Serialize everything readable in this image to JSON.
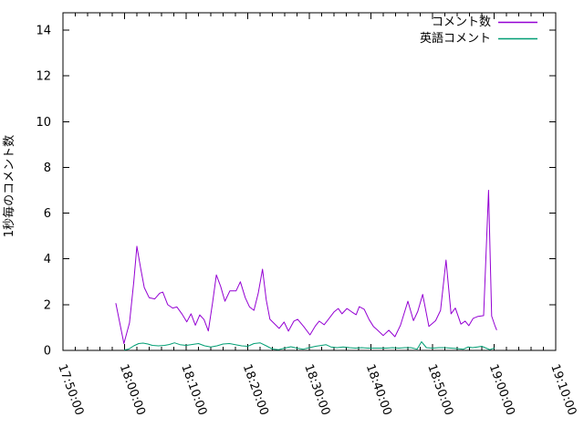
{
  "chart_data": {
    "type": "line",
    "title": "",
    "xlabel": "",
    "ylabel": "1秒毎のコメント数",
    "x_range": [
      "17:50:00",
      "19:10:00"
    ],
    "ylim": [
      0,
      14.76
    ],
    "yticks": [
      0,
      2,
      4,
      6,
      8,
      10,
      12,
      14
    ],
    "xticks_major": [
      "17:50:00",
      "18:00:00",
      "18:10:00",
      "18:20:00",
      "18:30:00",
      "18:40:00",
      "18:50:00",
      "19:00:00",
      "19:10:00"
    ],
    "xtick_minor_interval_min": 2,
    "grid": false,
    "legend_position": "top-right-inside",
    "legend": [
      "コメント数",
      "英語コメント"
    ],
    "colors": {
      "axis": "#000000",
      "background": "#ffffff",
      "series1": "#9400d3",
      "series2": "#009e73"
    },
    "series": [
      {
        "name": "コメント数",
        "color": "#9400d3",
        "points": [
          [
            "17:58:36",
            2.05
          ],
          [
            "17:59:54",
            0.3
          ],
          [
            "18:00:48",
            1.2
          ],
          [
            "18:01:30",
            3.0
          ],
          [
            "18:02:00",
            4.55
          ],
          [
            "18:02:36",
            3.6
          ],
          [
            "18:03:12",
            2.75
          ],
          [
            "18:04:00",
            2.3
          ],
          [
            "18:04:54",
            2.25
          ],
          [
            "18:05:42",
            2.5
          ],
          [
            "18:06:12",
            2.55
          ],
          [
            "18:07:00",
            2.0
          ],
          [
            "18:07:48",
            1.85
          ],
          [
            "18:08:30",
            1.9
          ],
          [
            "18:09:18",
            1.6
          ],
          [
            "18:10:06",
            1.25
          ],
          [
            "18:10:48",
            1.6
          ],
          [
            "18:11:30",
            1.1
          ],
          [
            "18:12:12",
            1.55
          ],
          [
            "18:12:54",
            1.35
          ],
          [
            "18:13:36",
            0.85
          ],
          [
            "18:14:18",
            2.1
          ],
          [
            "18:14:54",
            3.3
          ],
          [
            "18:15:36",
            2.8
          ],
          [
            "18:16:18",
            2.15
          ],
          [
            "18:17:06",
            2.6
          ],
          [
            "18:18:06",
            2.6
          ],
          [
            "18:18:48",
            3.0
          ],
          [
            "18:19:36",
            2.3
          ],
          [
            "18:20:18",
            1.9
          ],
          [
            "18:21:00",
            1.75
          ],
          [
            "18:21:42",
            2.5
          ],
          [
            "18:22:24",
            3.55
          ],
          [
            "18:23:00",
            2.2
          ],
          [
            "18:23:36",
            1.36
          ],
          [
            "18:25:06",
            0.96
          ],
          [
            "18:25:54",
            1.24
          ],
          [
            "18:26:36",
            0.84
          ],
          [
            "18:27:30",
            1.28
          ],
          [
            "18:28:06",
            1.36
          ],
          [
            "18:29:06",
            1.04
          ],
          [
            "18:30:06",
            0.68
          ],
          [
            "18:31:00",
            1.08
          ],
          [
            "18:31:36",
            1.28
          ],
          [
            "18:32:24",
            1.12
          ],
          [
            "18:33:06",
            1.36
          ],
          [
            "18:34:00",
            1.68
          ],
          [
            "18:34:42",
            1.83
          ],
          [
            "18:35:18",
            1.6
          ],
          [
            "18:36:06",
            1.83
          ],
          [
            "18:36:54",
            1.68
          ],
          [
            "18:37:36",
            1.56
          ],
          [
            "18:38:06",
            1.91
          ],
          [
            "18:38:54",
            1.8
          ],
          [
            "18:39:42",
            1.35
          ],
          [
            "18:40:24",
            1.05
          ],
          [
            "18:41:00",
            0.9
          ],
          [
            "18:42:00",
            0.65
          ],
          [
            "18:42:54",
            0.88
          ],
          [
            "18:43:54",
            0.6
          ],
          [
            "18:44:48",
            1.1
          ],
          [
            "18:46:00",
            2.15
          ],
          [
            "18:46:54",
            1.3
          ],
          [
            "18:47:36",
            1.7
          ],
          [
            "18:48:24",
            2.45
          ],
          [
            "18:49:24",
            1.05
          ],
          [
            "18:50:30",
            1.3
          ],
          [
            "18:51:18",
            1.75
          ],
          [
            "18:52:12",
            3.95
          ],
          [
            "18:53:00",
            1.6
          ],
          [
            "18:53:42",
            1.85
          ],
          [
            "18:54:36",
            1.15
          ],
          [
            "18:55:18",
            1.28
          ],
          [
            "18:55:54",
            1.08
          ],
          [
            "18:56:36",
            1.4
          ],
          [
            "18:57:18",
            1.48
          ],
          [
            "18:58:18",
            1.52
          ],
          [
            "18:59:06",
            7.0
          ],
          [
            "18:59:36",
            1.5
          ],
          [
            "19:00:06",
            1.1
          ],
          [
            "19:00:24",
            0.9
          ]
        ]
      },
      {
        "name": "英語コメント",
        "color": "#009e73",
        "points": [
          [
            "18:00:00",
            0.02
          ],
          [
            "18:00:42",
            0.06
          ],
          [
            "18:01:30",
            0.2
          ],
          [
            "18:02:18",
            0.3
          ],
          [
            "18:03:00",
            0.32
          ],
          [
            "18:03:48",
            0.28
          ],
          [
            "18:04:30",
            0.22
          ],
          [
            "18:05:30",
            0.2
          ],
          [
            "18:06:30",
            0.22
          ],
          [
            "18:07:18",
            0.26
          ],
          [
            "18:08:06",
            0.33
          ],
          [
            "18:09:00",
            0.25
          ],
          [
            "18:10:00",
            0.22
          ],
          [
            "18:11:00",
            0.26
          ],
          [
            "18:12:00",
            0.3
          ],
          [
            "18:13:00",
            0.2
          ],
          [
            "18:14:00",
            0.15
          ],
          [
            "18:15:00",
            0.2
          ],
          [
            "18:16:00",
            0.28
          ],
          [
            "18:17:00",
            0.3
          ],
          [
            "18:18:00",
            0.25
          ],
          [
            "18:19:00",
            0.2
          ],
          [
            "18:20:00",
            0.18
          ],
          [
            "18:21:00",
            0.3
          ],
          [
            "18:22:00",
            0.33
          ],
          [
            "18:23:00",
            0.2
          ],
          [
            "18:24:00",
            0.06
          ],
          [
            "18:25:00",
            0.03
          ],
          [
            "18:26:00",
            0.1
          ],
          [
            "18:27:00",
            0.16
          ],
          [
            "18:28:00",
            0.1
          ],
          [
            "18:29:00",
            0.05
          ],
          [
            "18:30:00",
            0.12
          ],
          [
            "18:31:00",
            0.18
          ],
          [
            "18:32:00",
            0.22
          ],
          [
            "18:32:42",
            0.25
          ],
          [
            "18:33:30",
            0.15
          ],
          [
            "18:34:30",
            0.12
          ],
          [
            "18:35:30",
            0.15
          ],
          [
            "18:36:30",
            0.12
          ],
          [
            "18:37:30",
            0.1
          ],
          [
            "18:38:30",
            0.12
          ],
          [
            "18:39:30",
            0.1
          ],
          [
            "18:40:30",
            0.1
          ],
          [
            "18:41:30",
            0.1
          ],
          [
            "18:42:30",
            0.1
          ],
          [
            "18:43:30",
            0.12
          ],
          [
            "18:44:30",
            0.1
          ],
          [
            "18:45:30",
            0.12
          ],
          [
            "18:46:30",
            0.12
          ],
          [
            "18:47:30",
            0.05
          ],
          [
            "18:48:12",
            0.38
          ],
          [
            "18:49:00",
            0.12
          ],
          [
            "18:50:00",
            0.1
          ],
          [
            "18:51:00",
            0.12
          ],
          [
            "18:52:00",
            0.12
          ],
          [
            "18:53:00",
            0.1
          ],
          [
            "18:54:00",
            0.08
          ],
          [
            "18:55:00",
            0.05
          ],
          [
            "18:55:48",
            0.15
          ],
          [
            "18:56:30",
            0.12
          ],
          [
            "18:57:18",
            0.15
          ],
          [
            "18:58:00",
            0.18
          ],
          [
            "18:58:42",
            0.1
          ],
          [
            "18:59:18",
            0.03
          ],
          [
            "19:00:00",
            0.1
          ]
        ]
      }
    ]
  }
}
